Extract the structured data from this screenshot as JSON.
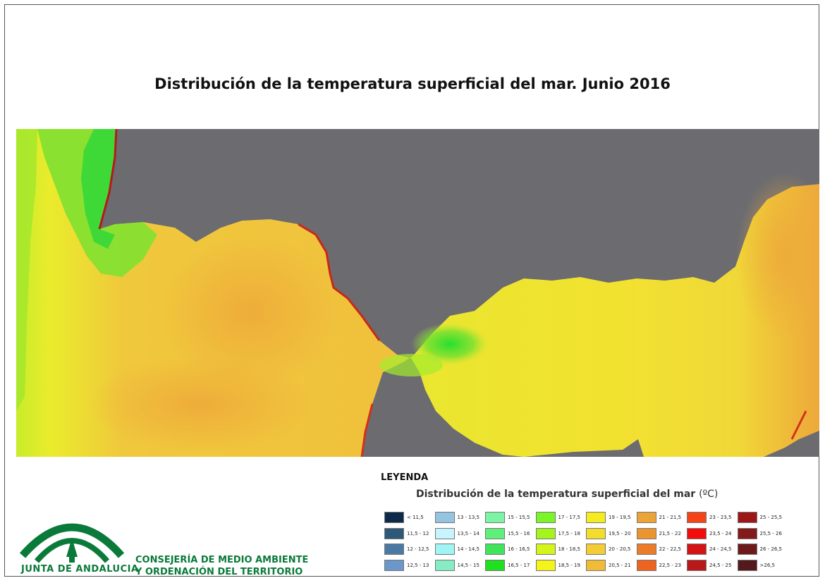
{
  "title": "Distribución de la temperatura superficial del mar. Junio 2016",
  "legend": {
    "heading": "LEYENDA",
    "subtitle": "Distribución de la temperatura superficial del mar",
    "unit": "(ºC)",
    "classes": [
      {
        "label": "< 11,5",
        "color": "#0d2a4a"
      },
      {
        "label": "11,5 - 12",
        "color": "#2e5878"
      },
      {
        "label": "12 - 12,5",
        "color": "#4a7aa4"
      },
      {
        "label": "12,5 - 13",
        "color": "#6b98c8"
      },
      {
        "label": "13 - 13,5",
        "color": "#95c4e0"
      },
      {
        "label": "13,5 - 14",
        "color": "#c8f4ff"
      },
      {
        "label": "14 - 14,5",
        "color": "#a0f4f4"
      },
      {
        "label": "14,5 - 15",
        "color": "#86ecc4"
      },
      {
        "label": "15 - 15,5",
        "color": "#7cf4a4"
      },
      {
        "label": "15,5 - 16",
        "color": "#5ef07a"
      },
      {
        "label": "16 - 16,5",
        "color": "#40e45a"
      },
      {
        "label": "16,5 - 17",
        "color": "#1fe01f"
      },
      {
        "label": "17 - 17,5",
        "color": "#7cf42a"
      },
      {
        "label": "17,5 - 18",
        "color": "#a4f41e"
      },
      {
        "label": "18 - 18,5",
        "color": "#d4f41a"
      },
      {
        "label": "18,5 - 19",
        "color": "#f4f41a"
      },
      {
        "label": "19 - 19,5",
        "color": "#f4ec20"
      },
      {
        "label": "19,5 - 20",
        "color": "#f4dc2c"
      },
      {
        "label": "20 - 20,5",
        "color": "#f4cc34"
      },
      {
        "label": "20,5 - 21",
        "color": "#f0bc38"
      },
      {
        "label": "21 - 21,5",
        "color": "#eca438"
      },
      {
        "label": "21,5 - 22",
        "color": "#ec9430"
      },
      {
        "label": "22 - 22,5",
        "color": "#ec7c28"
      },
      {
        "label": "22,5 - 23",
        "color": "#ec6420"
      },
      {
        "label": "23 - 23,5",
        "color": "#f44418"
      },
      {
        "label": "23,5 - 24",
        "color": "#f40c0c"
      },
      {
        "label": "24 - 24,5",
        "color": "#d41414"
      },
      {
        "label": "24,5 - 25",
        "color": "#b81818"
      },
      {
        "label": "25 - 25,5",
        "color": "#9c1818"
      },
      {
        "label": "25,5 - 26",
        "color": "#841a1a"
      },
      {
        "label": "26 - 26,5",
        "color": "#6c1a1a"
      },
      {
        "label": ">26,5",
        "color": "#521a1a"
      }
    ]
  },
  "logo": {
    "text": "JUNTA DE ANDALUCIA"
  },
  "organization": {
    "line1": "CONSEJERÍA DE MEDIO AMBIENTE",
    "line2": "Y ORDENACIÓN DEL TERRITORIO"
  },
  "colors": {
    "land": "#6b6b70",
    "brand_green": "#0a7a3a"
  }
}
